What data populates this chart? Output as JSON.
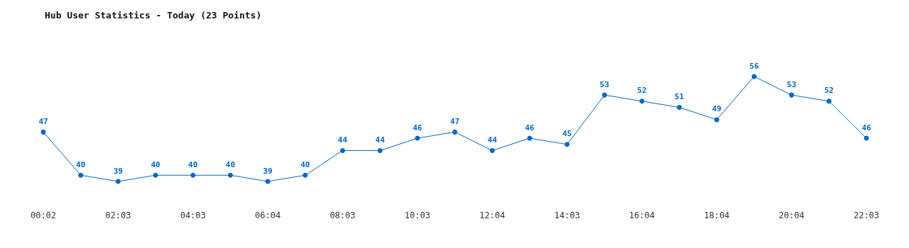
{
  "chart_data": {
    "type": "line",
    "title": "Hub User Statistics - Today (23 Points)",
    "categories": [
      "00:02",
      null,
      "02:03",
      null,
      "04:03",
      null,
      "06:04",
      null,
      "08:03",
      null,
      "10:03",
      null,
      "12:04",
      null,
      "14:03",
      null,
      "16:04",
      null,
      "18:04",
      null,
      "20:04",
      null,
      "22:03"
    ],
    "series": [
      {
        "color": "#0066cc",
        "values": [
          47,
          40,
          39,
          40,
          40,
          40,
          39,
          40,
          44,
          44,
          46,
          47,
          44,
          46,
          45,
          53,
          52,
          51,
          49,
          56,
          53,
          52,
          46
        ]
      }
    ],
    "data_labels": true,
    "grid": false,
    "marker": "circle",
    "line_style": "solid"
  }
}
